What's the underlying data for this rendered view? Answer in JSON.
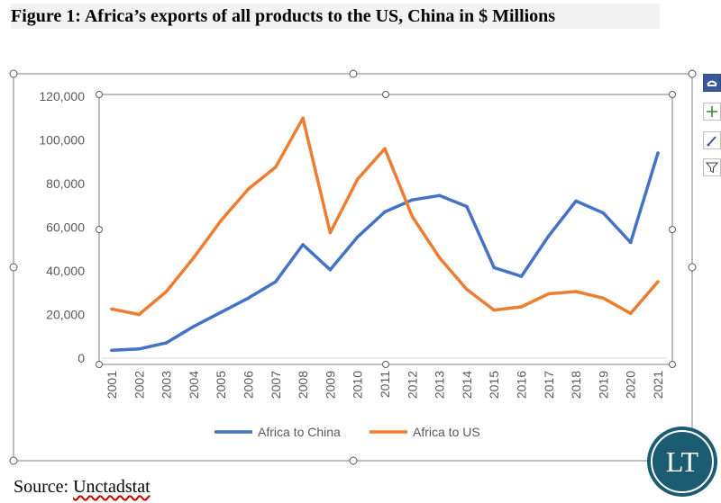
{
  "title": "Figure 1: Africa’s exports of all products to the US, China in $ Millions",
  "source_prefix": "Source: ",
  "source_link": "Unctadstat",
  "logo_text": "LT",
  "toolbar": {
    "icons": [
      "chart-styles-icon",
      "chart-elements-plus-icon",
      "chart-style-brush-icon",
      "chart-filter-icon"
    ]
  },
  "colors": {
    "china": "#4472c4",
    "us": "#ed7d31",
    "logo_bg": "#1b5c73",
    "logo_ring": "#ffffff"
  },
  "chart_data": {
    "type": "line",
    "title": "",
    "xlabel": "",
    "ylabel": "",
    "categories": [
      "2001",
      "2002",
      "2003",
      "2004",
      "2005",
      "2006",
      "2007",
      "2008",
      "2009",
      "2010",
      "2011",
      "2012",
      "2013",
      "2014",
      "2015",
      "2016",
      "2017",
      "2018",
      "2019",
      "2020",
      "2021"
    ],
    "ylim": [
      0,
      120000
    ],
    "yticks": [
      0,
      20000,
      40000,
      60000,
      80000,
      100000,
      120000
    ],
    "ytick_labels": [
      "0",
      "20,000",
      "40,000",
      "60,000",
      "80,000",
      "100,000",
      "120,000"
    ],
    "grid": false,
    "legend_position": "bottom",
    "series": [
      {
        "name": "Africa to China",
        "color": "#4472c4",
        "values": [
          3600,
          4200,
          7000,
          14500,
          21000,
          27500,
          35000,
          52000,
          40500,
          55500,
          67000,
          72500,
          74500,
          69500,
          41500,
          37500,
          56000,
          72000,
          66500,
          53000,
          94000
        ]
      },
      {
        "name": "Africa to US",
        "color": "#ed7d31",
        "values": [
          22500,
          20000,
          30500,
          46000,
          63000,
          77500,
          87500,
          110000,
          57500,
          82000,
          96000,
          65000,
          46000,
          31500,
          22000,
          23500,
          29500,
          30500,
          27500,
          20500,
          35000
        ]
      }
    ]
  }
}
